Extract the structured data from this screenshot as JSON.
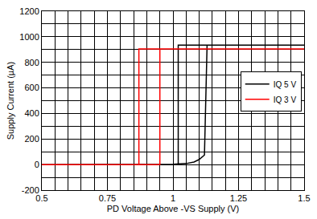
{
  "chart_data": {
    "type": "line",
    "x_label": "PD Voltage Above -VS Supply (V)",
    "y_label": "Supply Current (µA)",
    "xlim": [
      0.5,
      1.5
    ],
    "xticks": [
      0.5,
      0.75,
      1,
      1.25,
      1.5
    ],
    "ylim": [
      -200,
      1200
    ],
    "yticks": [
      -200,
      0,
      200,
      400,
      600,
      800,
      1000,
      1200
    ],
    "grid": true,
    "legend": "right",
    "series": [
      {
        "name": "IQ 5 V",
        "color": "#000000",
        "x": [
          0.5,
          1.0,
          1.05,
          1.08,
          1.1,
          1.12,
          1.13,
          1.5,
          1.02,
          1.02
        ],
        "values": [
          0,
          2,
          8,
          20,
          40,
          75,
          935,
          935,
          935,
          0
        ]
      },
      {
        "name": "IQ 3 V",
        "color": "#ff0000",
        "x": [
          0.5,
          0.95,
          0.95,
          1.5,
          0.87,
          0.87
        ],
        "values": [
          0,
          0,
          905,
          905,
          905,
          0
        ]
      }
    ]
  }
}
